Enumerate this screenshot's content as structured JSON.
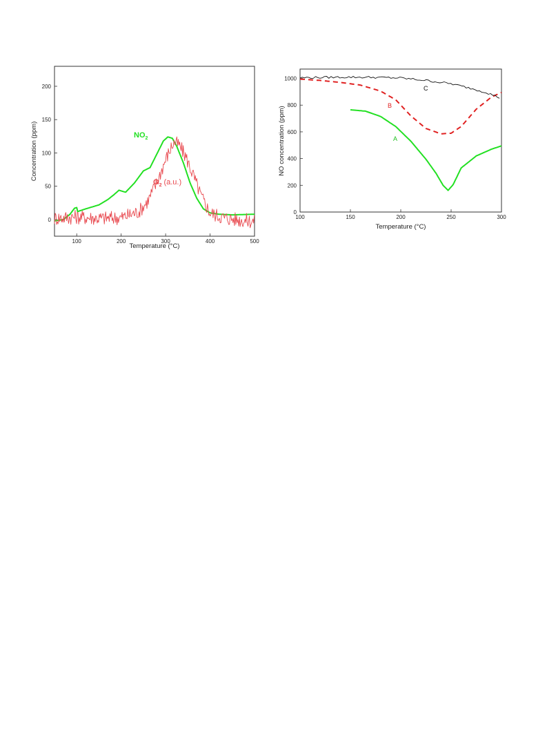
{
  "chart_data": [
    {
      "type": "line",
      "title": "",
      "xlabel": "Temperature (°C)",
      "ylabel": "Concentration (ppm)",
      "xlim": [
        50,
        500
      ],
      "ylim": [
        -25,
        230
      ],
      "xticks": [
        "100",
        "200",
        "300",
        "400",
        "500"
      ],
      "yticks": [
        "0",
        "50",
        "100",
        "150",
        "200"
      ],
      "grid": false,
      "annotations": {
        "no2_main": "NO",
        "no2_sub": "2",
        "o2_main": "O",
        "o2_sub": "2",
        "o2_note": "(a.u.)"
      },
      "series": [
        {
          "label": "NO2",
          "color": "#22e022",
          "x": [
            50,
            70,
            85,
            95,
            100,
            102,
            120,
            150,
            170,
            185,
            195,
            210,
            230,
            250,
            265,
            280,
            295,
            305,
            315,
            325,
            340,
            355,
            370,
            385,
            400,
            420,
            450,
            500
          ],
          "y": [
            -2,
            0,
            8,
            17,
            18,
            12,
            16,
            22,
            30,
            38,
            44,
            41,
            55,
            73,
            78,
            98,
            118,
            124,
            122,
            110,
            85,
            55,
            32,
            16,
            10,
            8,
            7,
            8
          ]
        },
        {
          "label": "O2 (a.u.)",
          "color": "#e8484e",
          "x": [
            50,
            100,
            150,
            200,
            240,
            260,
            280,
            300,
            315,
            320,
            330,
            345,
            360,
            380,
            400,
            430,
            460,
            500
          ],
          "y": [
            2,
            4,
            2,
            3,
            12,
            28,
            55,
            90,
            112,
            116,
            112,
            95,
            70,
            35,
            10,
            3,
            0,
            -3
          ],
          "noise": true
        }
      ]
    },
    {
      "type": "line",
      "title": "",
      "xlabel": "Temperature (°C)",
      "ylabel": "NO concentration (ppm)",
      "xlim": [
        100,
        300
      ],
      "ylim": [
        0,
        1070
      ],
      "xticks": [
        "100",
        "150",
        "200",
        "250",
        "300"
      ],
      "yticks": [
        "0",
        "200",
        "400",
        "600",
        "800",
        "1000"
      ],
      "grid": false,
      "series": [
        {
          "label": "A",
          "color": "#22e022",
          "dash": false,
          "x": [
            150,
            165,
            180,
            195,
            210,
            225,
            235,
            242,
            247,
            252,
            260,
            275,
            290,
            300
          ],
          "y": [
            765,
            755,
            715,
            640,
            530,
            395,
            290,
            200,
            162,
            205,
            330,
            420,
            470,
            495
          ]
        },
        {
          "label": "B",
          "color": "#e02020",
          "dash": true,
          "x": [
            100,
            120,
            140,
            160,
            180,
            195,
            210,
            225,
            240,
            250,
            260,
            275,
            290,
            300
          ],
          "y": [
            995,
            985,
            970,
            950,
            905,
            840,
            720,
            625,
            585,
            590,
            640,
            770,
            860,
            895
          ]
        },
        {
          "label": "C",
          "color": "#111111",
          "dash": false,
          "x": [
            100,
            125,
            150,
            175,
            200,
            225,
            250,
            270,
            285,
            300
          ],
          "y": [
            1005,
            1008,
            1010,
            1008,
            1003,
            985,
            960,
            925,
            895,
            850
          ],
          "noise": true
        }
      ]
    }
  ]
}
